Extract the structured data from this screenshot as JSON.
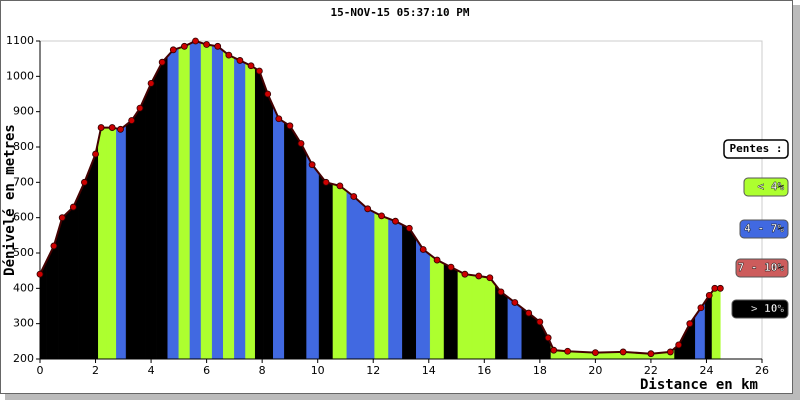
{
  "chart_data": {
    "type": "profile",
    "title": "15-NOV-15 05:37:10 PM",
    "x_label": "Distance en km",
    "y_label": "Dénivelé en metres",
    "x": [
      0,
      0.5,
      0.8,
      1.2,
      1.6,
      2.0,
      2.2,
      2.6,
      2.9,
      3.3,
      3.6,
      4.0,
      4.4,
      4.8,
      5.2,
      5.6,
      6.0,
      6.4,
      6.8,
      7.2,
      7.6,
      7.9,
      8.2,
      8.6,
      9.0,
      9.4,
      9.8,
      10.3,
      10.8,
      11.3,
      11.8,
      12.3,
      12.8,
      13.3,
      13.8,
      14.3,
      14.8,
      15.3,
      15.8,
      16.2,
      16.6,
      17.1,
      17.6,
      18.0,
      18.3,
      18.5,
      19.0,
      20.0,
      21.0,
      22.0,
      22.7,
      23.0,
      23.4,
      23.8,
      24.1,
      24.3,
      24.5
    ],
    "series": [
      {
        "name": "Altitude",
        "color": "#cc0000",
        "values": [
          440,
          520,
          600,
          630,
          700,
          780,
          855,
          855,
          850,
          875,
          910,
          980,
          1040,
          1075,
          1085,
          1100,
          1090,
          1085,
          1060,
          1045,
          1030,
          1015,
          950,
          880,
          860,
          810,
          750,
          700,
          690,
          660,
          625,
          605,
          590,
          570,
          510,
          480,
          460,
          440,
          435,
          430,
          390,
          360,
          330,
          305,
          260,
          225,
          222,
          218,
          220,
          215,
          220,
          240,
          300,
          345,
          380,
          400,
          400
        ],
        "fill_colors": [
          "#000000",
          "#000000",
          "#000000",
          "#000000",
          "#000000",
          "#000000",
          "#adff2f",
          "#adff2f",
          "#4169e1",
          "#000000",
          "#000000",
          "#000000",
          "#000000",
          "#4169e1",
          "#adff2f",
          "#4169e1",
          "#adff2f",
          "#4169e1",
          "#adff2f",
          "#4169e1",
          "#adff2f",
          "#000000",
          "#000000",
          "#4169e1",
          "#000000",
          "#000000",
          "#4169e1",
          "#000000",
          "#adff2f",
          "#4169e1",
          "#4169e1",
          "#adff2f",
          "#4169e1",
          "#000000",
          "#4169e1",
          "#adff2f",
          "#000000",
          "#adff2f",
          "#adff2f",
          "#adff2f",
          "#000000",
          "#4169e1",
          "#000000",
          "#000000",
          "#000000",
          "#adff2f",
          "#adff2f",
          "#adff2f",
          "#adff2f",
          "#adff2f",
          "#adff2f",
          "#000000",
          "#000000",
          "#4169e1",
          "#000000",
          "#adff2f",
          "#adff2f"
        ]
      }
    ],
    "xlim": [
      0,
      26
    ],
    "xticks": [
      0,
      2,
      4,
      6,
      8,
      10,
      12,
      14,
      16,
      18,
      20,
      22,
      24,
      26
    ],
    "ylim": [
      200,
      1100
    ],
    "yticks": [
      200,
      300,
      400,
      500,
      600,
      700,
      800,
      900,
      1000,
      1100
    ],
    "legend_title": "Pentes :",
    "legend": [
      {
        "label": "< 4%",
        "color": "#adff2f"
      },
      {
        "label": "4 - 7%",
        "color": "#4169e1"
      },
      {
        "label": "7 - 10%",
        "color": "#cd5c5c"
      },
      {
        "label": "> 10%",
        "color": "#000000"
      }
    ]
  }
}
